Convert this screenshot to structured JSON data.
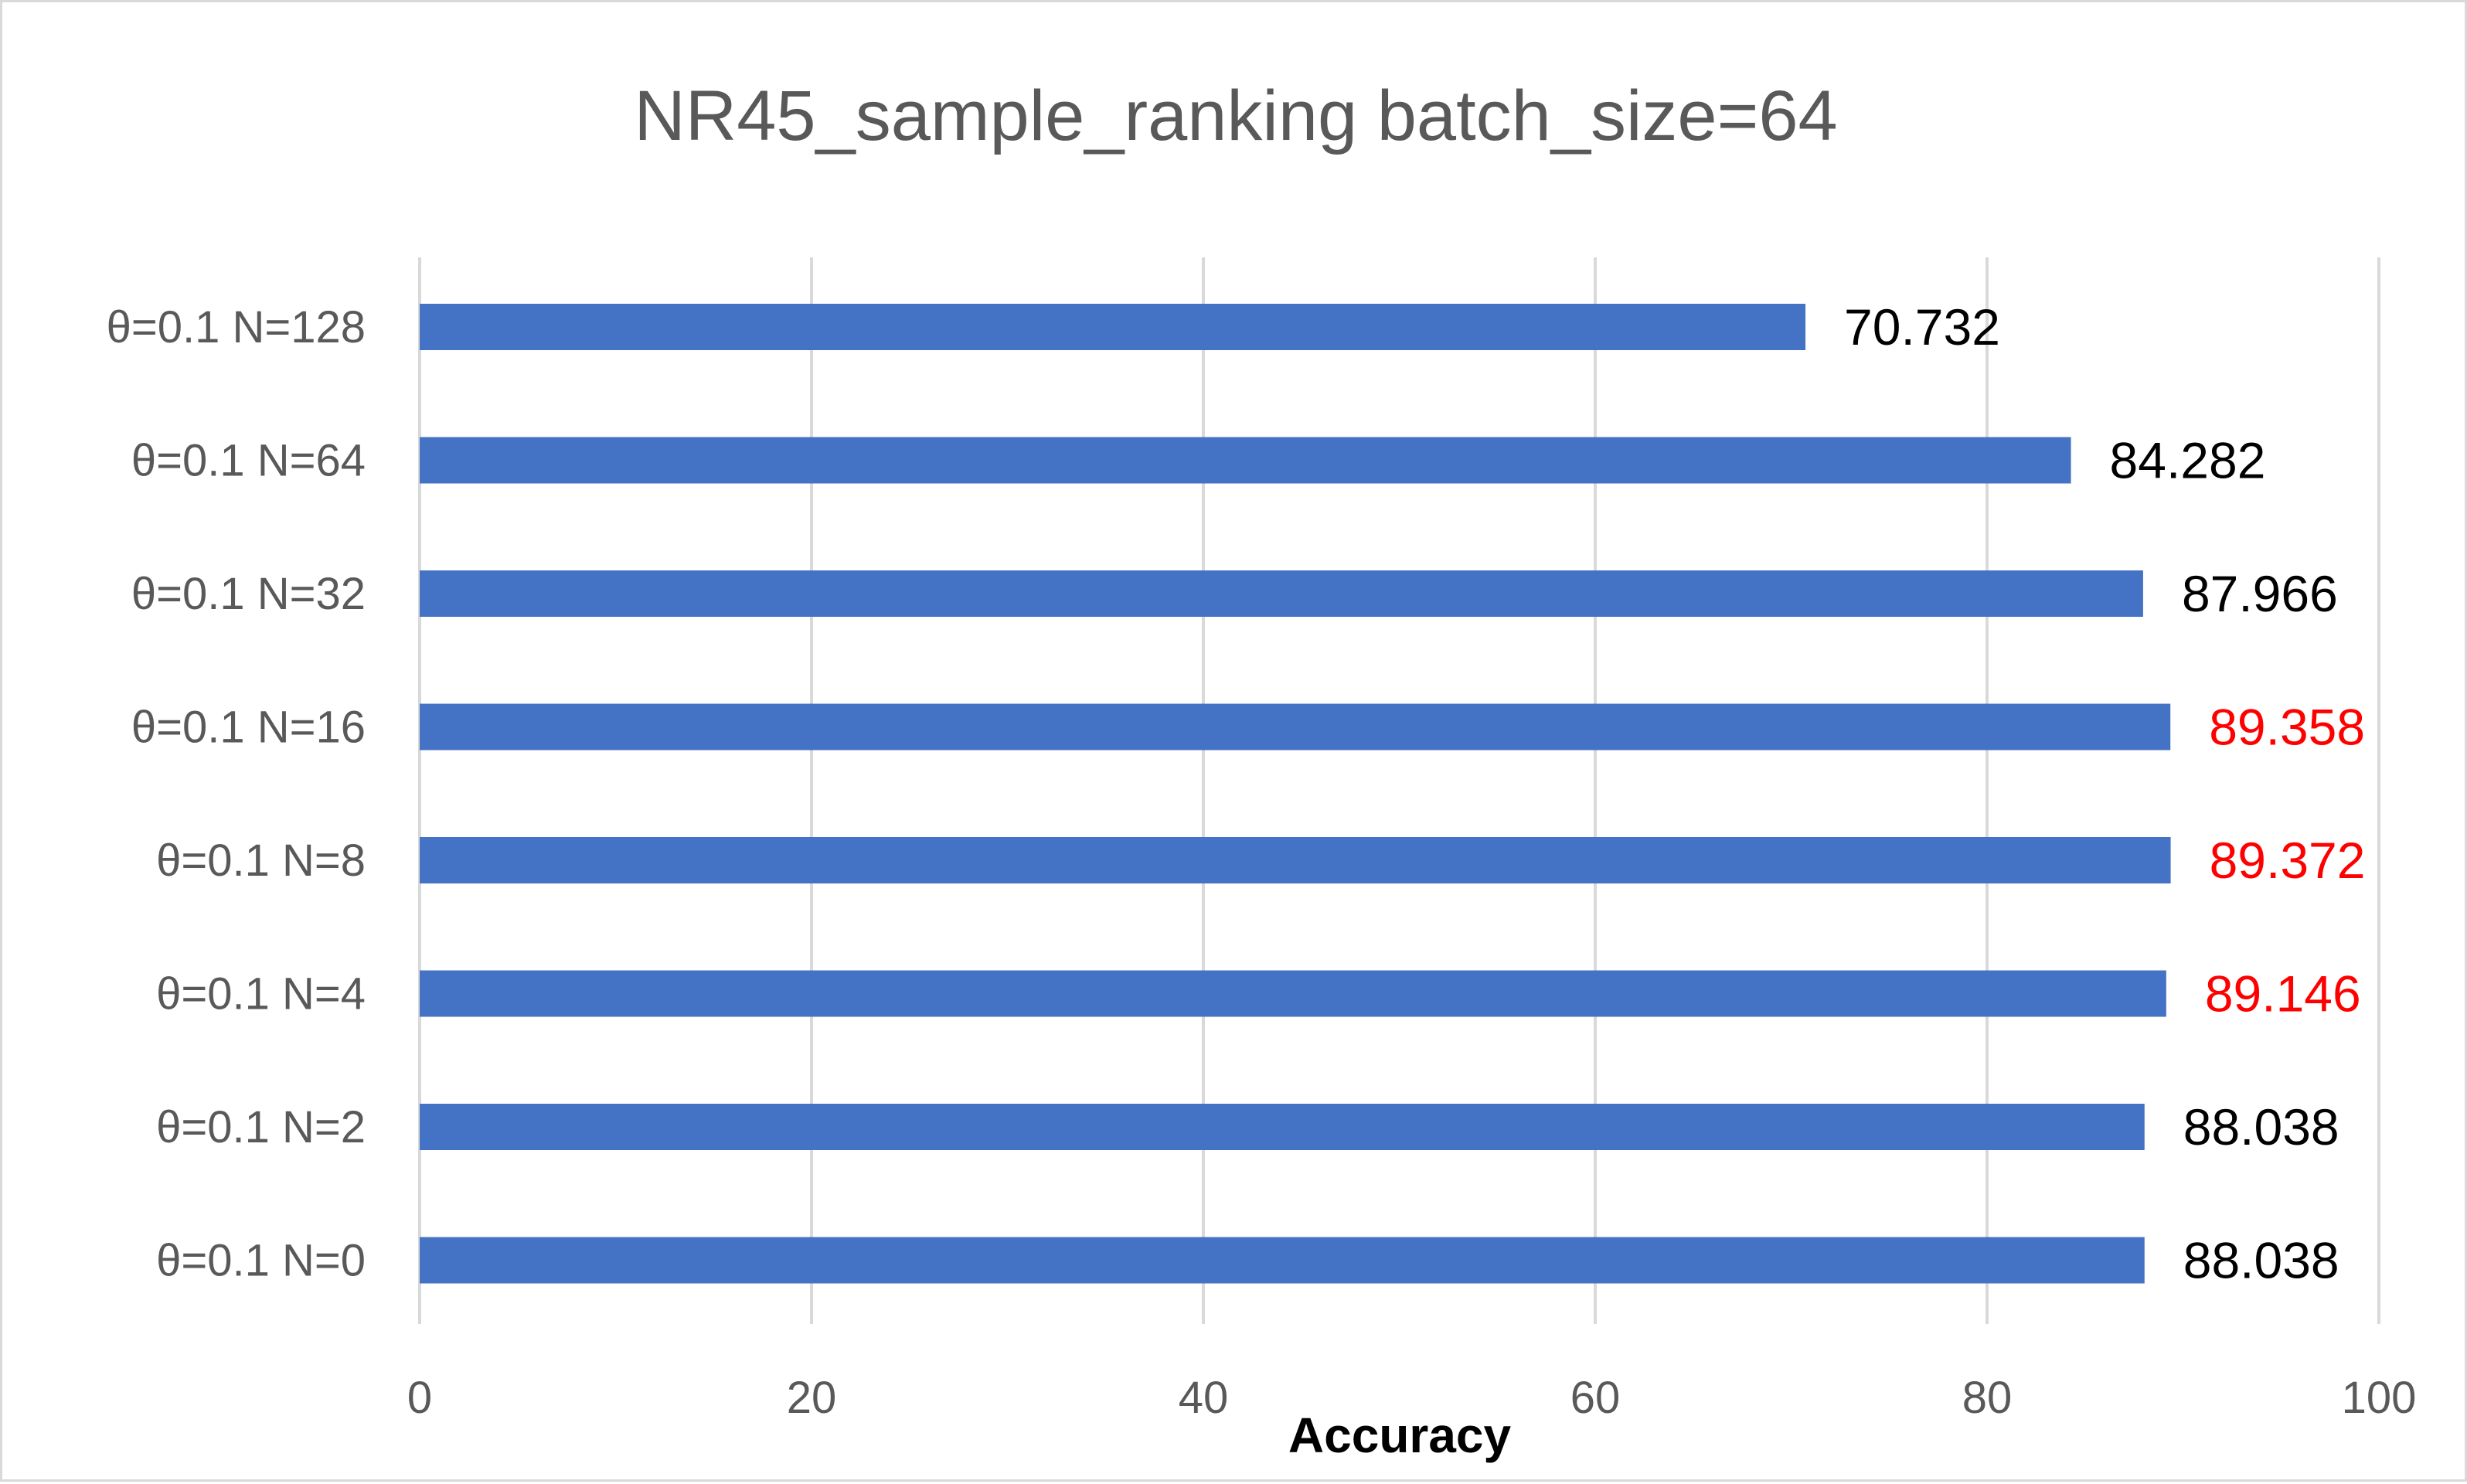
{
  "chart_data": {
    "type": "bar",
    "orientation": "horizontal",
    "title": "NR45_sample_ranking batch_size=64",
    "xlabel": "Accuracy",
    "ylabel": "",
    "xlim": [
      0,
      100
    ],
    "xticks": [
      0,
      20,
      40,
      60,
      80,
      100
    ],
    "grid": true,
    "legend": "none",
    "bar_color": "#4472c4",
    "categories": [
      "θ=0.1 N=128",
      "θ=0.1 N=64",
      "θ=0.1 N=32",
      "θ=0.1 N=16",
      "θ=0.1 N=8",
      "θ=0.1 N=4",
      "θ=0.1 N=2",
      "θ=0.1 N=0"
    ],
    "values": [
      70.732,
      84.282,
      87.966,
      89.358,
      89.372,
      89.146,
      88.038,
      88.038
    ],
    "data_labels": [
      "70.732",
      "84.282",
      "87.966",
      "89.358",
      "89.372",
      "89.146",
      "88.038",
      "88.038"
    ],
    "highlight_color": "#ff0000",
    "default_label_color": "#000000",
    "highlighted": [
      false,
      false,
      false,
      true,
      true,
      true,
      false,
      false
    ]
  }
}
